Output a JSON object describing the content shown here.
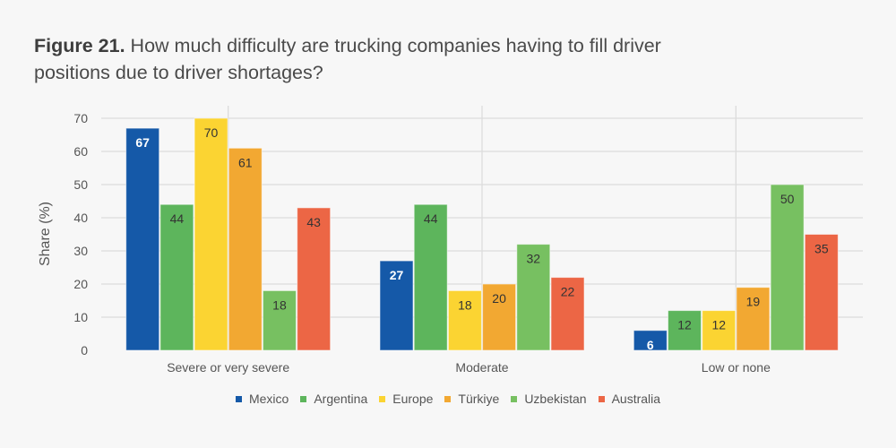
{
  "figure": {
    "label": "Figure 21.",
    "text": "How much difficulty are trucking companies having to fill driver positions due to driver shortages?"
  },
  "chart_data": {
    "type": "bar",
    "title": "Figure 21. How much difficulty are trucking companies having to fill driver positions due to driver shortages?",
    "xlabel": "",
    "ylabel": "Share (%)",
    "ylim": [
      0,
      70
    ],
    "yticks": [
      0,
      10,
      20,
      30,
      40,
      50,
      60,
      70
    ],
    "grid": true,
    "legend_position": "bottom",
    "categories": [
      "Severe or very severe",
      "Moderate",
      "Low or none"
    ],
    "series": [
      {
        "name": "Mexico",
        "color": "#1559a8",
        "label_color": "#ffffff",
        "values": [
          67,
          27,
          6
        ]
      },
      {
        "name": "Argentina",
        "color": "#5db55c",
        "label_color": "#333333",
        "values": [
          44,
          44,
          12
        ]
      },
      {
        "name": "Europe",
        "color": "#fbd432",
        "label_color": "#333333",
        "values": [
          70,
          18,
          12
        ]
      },
      {
        "name": "Türkiye",
        "color": "#f2a832",
        "label_color": "#333333",
        "values": [
          61,
          20,
          19
        ]
      },
      {
        "name": "Uzbekistan",
        "color": "#77c061",
        "label_color": "#333333",
        "values": [
          18,
          32,
          50
        ]
      },
      {
        "name": "Australia",
        "color": "#ec6645",
        "label_color": "#333333",
        "values": [
          43,
          22,
          35
        ]
      }
    ]
  }
}
